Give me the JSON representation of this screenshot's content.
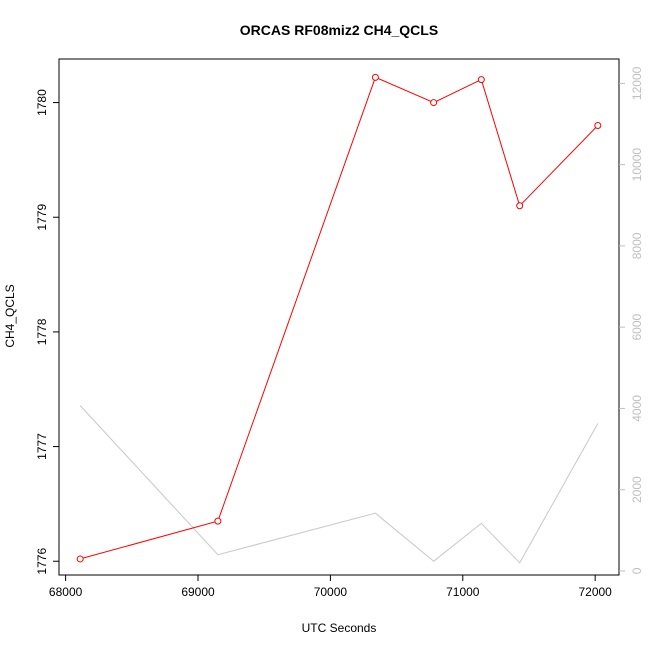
{
  "chart_data": {
    "type": "line",
    "title": "ORCAS RF08miz2 CH4_QCLS",
    "xlabel": "UTC Seconds",
    "ylabel": "CH4_QCLS",
    "xlim": [
      67950,
      72180
    ],
    "ylim": [
      1775.88,
      1780.38
    ],
    "y2lim": [
      -100,
      12600
    ],
    "x_ticks": [
      68000,
      69000,
      70000,
      71000,
      72000
    ],
    "y_ticks": [
      1776,
      1777,
      1778,
      1779,
      1780
    ],
    "y2_ticks": [
      0,
      2000,
      4000,
      6000,
      8000,
      10000,
      12000
    ],
    "grid": false,
    "series": [
      {
        "axis": "left",
        "color": "#ff0000",
        "markers": true,
        "x": [
          68110,
          69150,
          70340,
          70780,
          71140,
          71430,
          72020
        ],
        "y": [
          1776.02,
          1776.35,
          1780.22,
          1780.0,
          1780.2,
          1779.1,
          1779.8
        ]
      },
      {
        "axis": "right",
        "color": "#c8c8c8",
        "markers": false,
        "x": [
          68110,
          69150,
          70340,
          70780,
          71140,
          71430,
          72020
        ],
        "y": [
          4070,
          400,
          1420,
          240,
          1170,
          200,
          3630
        ]
      }
    ]
  }
}
